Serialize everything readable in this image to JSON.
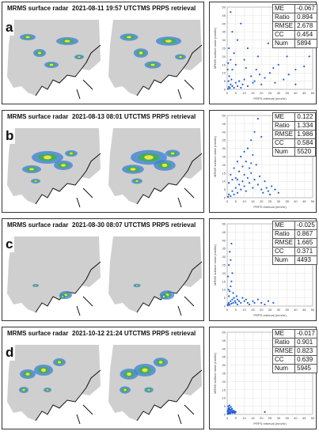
{
  "colors": {
    "dots": "#1f5fd6",
    "land": "#cfcfcf",
    "coast": "#111111",
    "rain_light": "#3a7fd9",
    "rain_mid": "#3fb04a",
    "rain_heavy": "#f2e23a"
  },
  "panels": [
    {
      "letter": "a",
      "left_title": "MRMS surface radar",
      "datetime": "2021-08-11 19:57 UTC",
      "right_title": "TMS PRPS retrieval",
      "stats": [
        {
          "k": "ME",
          "v": "-0.067"
        },
        {
          "k": "Ratio",
          "v": "0.894"
        },
        {
          "k": "RMSE",
          "v": "2.678"
        },
        {
          "k": "CC",
          "v": "0.454"
        },
        {
          "k": "Num",
          "v": "5894"
        }
      ]
    },
    {
      "letter": "b",
      "left_title": "MRMS surface radar",
      "datetime": "2021-08-13 08:01 UTC",
      "right_title": "TMS PRPS retrieval",
      "stats": [
        {
          "k": "ME",
          "v": "0.122"
        },
        {
          "k": "Ratio",
          "v": "1.334"
        },
        {
          "k": "RMSE",
          "v": "1.986"
        },
        {
          "k": "CC",
          "v": "0.584"
        },
        {
          "k": "Num",
          "v": "5520"
        }
      ]
    },
    {
      "letter": "c",
      "left_title": "MRMS surface radar",
      "datetime": "2021-08-30 08:07 UTC",
      "right_title": "TMS PRPS retrieval",
      "stats": [
        {
          "k": "ME",
          "v": "-0.025"
        },
        {
          "k": "Ratio",
          "v": "0.867"
        },
        {
          "k": "RMSE",
          "v": "1.665"
        },
        {
          "k": "CC",
          "v": "0.371"
        },
        {
          "k": "Num",
          "v": "4493"
        }
      ]
    },
    {
      "letter": "d",
      "left_title": "MRMS surface radar",
      "datetime": "2021-10-12 21:24 UTC",
      "right_title": "TMS PRPS retrieval",
      "stats": [
        {
          "k": "ME",
          "v": "-0.017"
        },
        {
          "k": "Ratio",
          "v": "0.901"
        },
        {
          "k": "RMSE",
          "v": "0.823"
        },
        {
          "k": "CC",
          "v": "0.639"
        },
        {
          "k": "Num",
          "v": "5945"
        }
      ]
    }
  ],
  "chart_data": [
    {
      "type": "scatter",
      "xlabel": "PRPS retrieval (mm/hr)",
      "ylabel": "MRMS surface radar (mm/hr)",
      "xlim": [
        0,
        50
      ],
      "ylim": [
        0,
        50
      ],
      "xticks": [
        0,
        5,
        10,
        15,
        20,
        25,
        30,
        35,
        40,
        45,
        50
      ],
      "yticks": [
        0,
        5,
        10,
        15,
        20,
        25,
        30,
        35,
        40,
        45,
        50
      ],
      "grid": true,
      "points": [
        [
          0.5,
          0.3
        ],
        [
          1,
          1.5
        ],
        [
          1.5,
          0.8
        ],
        [
          2,
          3
        ],
        [
          0.8,
          5
        ],
        [
          1.2,
          8
        ],
        [
          3,
          2
        ],
        [
          4,
          1
        ],
        [
          2.5,
          6
        ],
        [
          5,
          4
        ],
        [
          6,
          2
        ],
        [
          7,
          5
        ],
        [
          8,
          1
        ],
        [
          9,
          3
        ],
        [
          10,
          6
        ],
        [
          12,
          2
        ],
        [
          14,
          8
        ],
        [
          15,
          4
        ],
        [
          17,
          12
        ],
        [
          20,
          3
        ],
        [
          22,
          7
        ],
        [
          25,
          10
        ],
        [
          28,
          4
        ],
        [
          30,
          15
        ],
        [
          33,
          6
        ],
        [
          36,
          9
        ],
        [
          40,
          3
        ],
        [
          45,
          14
        ],
        [
          48,
          20
        ],
        [
          3,
          12
        ],
        [
          5,
          15
        ],
        [
          2,
          18
        ],
        [
          4,
          22
        ],
        [
          1,
          25
        ],
        [
          6,
          30
        ],
        [
          3,
          35
        ],
        [
          8,
          40
        ],
        [
          2,
          47
        ],
        [
          10,
          18
        ],
        [
          12,
          25
        ],
        [
          18,
          20
        ],
        [
          0.3,
          12
        ],
        [
          0.6,
          16
        ],
        [
          24,
          28
        ],
        [
          35,
          20
        ],
        [
          40,
          12
        ],
        [
          11,
          13
        ],
        [
          16,
          5
        ],
        [
          19,
          9
        ],
        [
          27,
          13
        ]
      ]
    },
    {
      "type": "scatter",
      "xlabel": "PRPS retrieval (mm/hr)",
      "ylabel": "MRMS surface radar (mm/hr)",
      "xlim": [
        0,
        50
      ],
      "ylim": [
        0,
        50
      ],
      "xticks": [
        0,
        5,
        10,
        15,
        20,
        25,
        30,
        35,
        40,
        45,
        50
      ],
      "yticks": [
        0,
        5,
        10,
        15,
        20,
        25,
        30,
        35,
        40,
        45,
        50
      ],
      "grid": true,
      "points": [
        [
          0.5,
          0.5
        ],
        [
          1,
          2
        ],
        [
          2,
          1
        ],
        [
          3,
          4
        ],
        [
          4,
          2
        ],
        [
          5,
          6
        ],
        [
          6,
          3
        ],
        [
          7,
          8
        ],
        [
          8,
          5
        ],
        [
          9,
          10
        ],
        [
          10,
          7
        ],
        [
          11,
          4
        ],
        [
          12,
          12
        ],
        [
          13,
          9
        ],
        [
          14,
          15
        ],
        [
          15,
          6
        ],
        [
          16,
          11
        ],
        [
          17,
          20
        ],
        [
          18,
          8
        ],
        [
          19,
          13
        ],
        [
          20,
          5
        ],
        [
          22,
          10
        ],
        [
          24,
          4
        ],
        [
          26,
          7
        ],
        [
          2,
          14
        ],
        [
          4,
          18
        ],
        [
          6,
          22
        ],
        [
          8,
          25
        ],
        [
          10,
          28
        ],
        [
          12,
          30
        ],
        [
          14,
          35
        ],
        [
          16,
          40
        ],
        [
          18,
          48
        ],
        [
          20,
          37
        ],
        [
          5,
          12
        ],
        [
          7,
          16
        ],
        [
          9,
          19
        ],
        [
          11,
          22
        ],
        [
          13,
          18
        ],
        [
          15,
          26
        ],
        [
          1,
          9
        ],
        [
          3,
          11
        ],
        [
          21,
          3
        ],
        [
          23,
          6
        ],
        [
          25,
          2
        ],
        [
          28,
          5
        ],
        [
          30,
          3
        ],
        [
          6,
          11
        ],
        [
          10,
          14
        ],
        [
          14,
          21
        ]
      ]
    },
    {
      "type": "scatter",
      "xlabel": "PRPS retrieval (mm/hr)",
      "ylabel": "MRMS surface radar (mm/hr)",
      "xlim": [
        0,
        50
      ],
      "ylim": [
        0,
        50
      ],
      "xticks": [
        0,
        5,
        10,
        15,
        20,
        25,
        30,
        35,
        40,
        45,
        50
      ],
      "yticks": [
        0,
        5,
        10,
        15,
        20,
        25,
        30,
        35,
        40,
        45,
        50
      ],
      "grid": true,
      "points": [
        [
          0.3,
          0.5
        ],
        [
          0.6,
          1.2
        ],
        [
          1,
          2
        ],
        [
          1.4,
          0.8
        ],
        [
          2,
          3
        ],
        [
          2.5,
          1.5
        ],
        [
          3,
          4
        ],
        [
          3.5,
          2
        ],
        [
          4,
          5
        ],
        [
          4.5,
          3
        ],
        [
          5,
          2
        ],
        [
          5.5,
          6
        ],
        [
          6,
          4
        ],
        [
          7,
          3
        ],
        [
          8,
          2
        ],
        [
          9,
          5
        ],
        [
          10,
          3
        ],
        [
          12,
          2
        ],
        [
          15,
          3
        ],
        [
          18,
          4
        ],
        [
          20,
          2
        ],
        [
          24,
          3
        ],
        [
          27,
          2
        ],
        [
          1,
          6
        ],
        [
          1.5,
          9
        ],
        [
          2,
          12
        ],
        [
          2.5,
          15
        ],
        [
          3,
          20
        ],
        [
          1,
          25
        ],
        [
          2,
          28
        ],
        [
          1.5,
          33
        ],
        [
          2.5,
          38
        ],
        [
          0.8,
          10
        ],
        [
          3.5,
          8
        ],
        [
          0.5,
          18
        ],
        [
          11,
          4
        ],
        [
          13,
          1
        ],
        [
          16,
          2
        ],
        [
          22,
          1
        ],
        [
          6,
          1
        ]
      ]
    },
    {
      "type": "scatter",
      "xlabel": "PRPS retrieval (mm/hr)",
      "ylabel": "MRMS surface radar (mm/hr)",
      "xlim": [
        0,
        50
      ],
      "ylim": [
        0,
        50
      ],
      "xticks": [
        0,
        5,
        10,
        15,
        20,
        25,
        30,
        35,
        40,
        45,
        50
      ],
      "yticks": [
        0,
        5,
        10,
        15,
        20,
        25,
        30,
        35,
        40,
        45,
        50
      ],
      "grid": true,
      "points": [
        [
          0.2,
          0.3
        ],
        [
          0.5,
          0.8
        ],
        [
          0.8,
          0.4
        ],
        [
          1,
          1.5
        ],
        [
          1.3,
          1
        ],
        [
          1.6,
          2.2
        ],
        [
          2,
          1.3
        ],
        [
          2.3,
          2.8
        ],
        [
          2.6,
          1.8
        ],
        [
          3,
          0.9
        ],
        [
          3.4,
          2.4
        ],
        [
          3.8,
          1.2
        ],
        [
          4.2,
          2
        ],
        [
          0.4,
          2.5
        ],
        [
          0.7,
          3.4
        ],
        [
          1.1,
          4
        ],
        [
          1.5,
          3.2
        ],
        [
          2.1,
          4.5
        ],
        [
          0.3,
          1.8
        ],
        [
          0.9,
          2.9
        ],
        [
          1.8,
          0.6
        ],
        [
          2.8,
          3.5
        ],
        [
          3.2,
          1.6
        ],
        [
          4.5,
          0.8
        ],
        [
          5,
          1.5
        ],
        [
          22,
          1.5
        ],
        [
          0.6,
          5
        ],
        [
          1.4,
          5.5
        ]
      ]
    }
  ]
}
